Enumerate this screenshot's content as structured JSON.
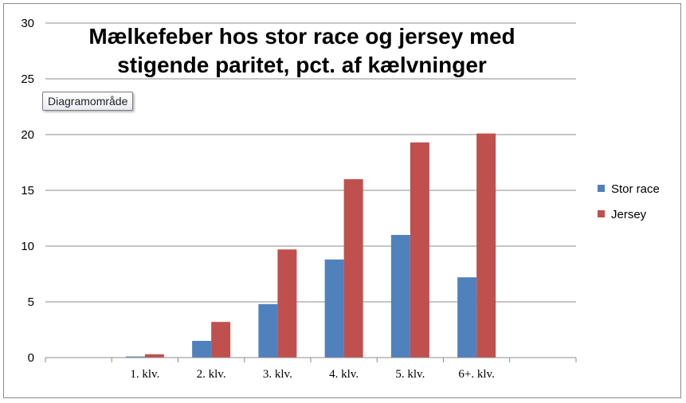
{
  "chart_data": {
    "type": "bar",
    "title_lines": [
      "Mælkefeber hos stor race og jersey med",
      "stigende paritet, pct. af kælvninger"
    ],
    "categories": [
      "",
      "1. klv.",
      "2. klv.",
      "3. klv.",
      "4. klv.",
      "5. klv.",
      "6+. klv.",
      ""
    ],
    "series": [
      {
        "name": "Stor race",
        "color": "#4f81bd",
        "values": [
          null,
          0.1,
          1.5,
          4.8,
          8.8,
          11.0,
          7.2,
          null
        ]
      },
      {
        "name": "Jersey",
        "color": "#c0504d",
        "values": [
          null,
          0.3,
          3.2,
          9.7,
          16.0,
          19.3,
          20.1,
          null
        ]
      }
    ],
    "y_ticks": [
      "0",
      "5",
      "10",
      "15",
      "20",
      "25",
      "30"
    ],
    "ylim": [
      0,
      30
    ],
    "grid": true,
    "legend_position": "right",
    "xlabel": "",
    "ylabel": ""
  },
  "tooltip": {
    "label": "Diagramområde"
  }
}
